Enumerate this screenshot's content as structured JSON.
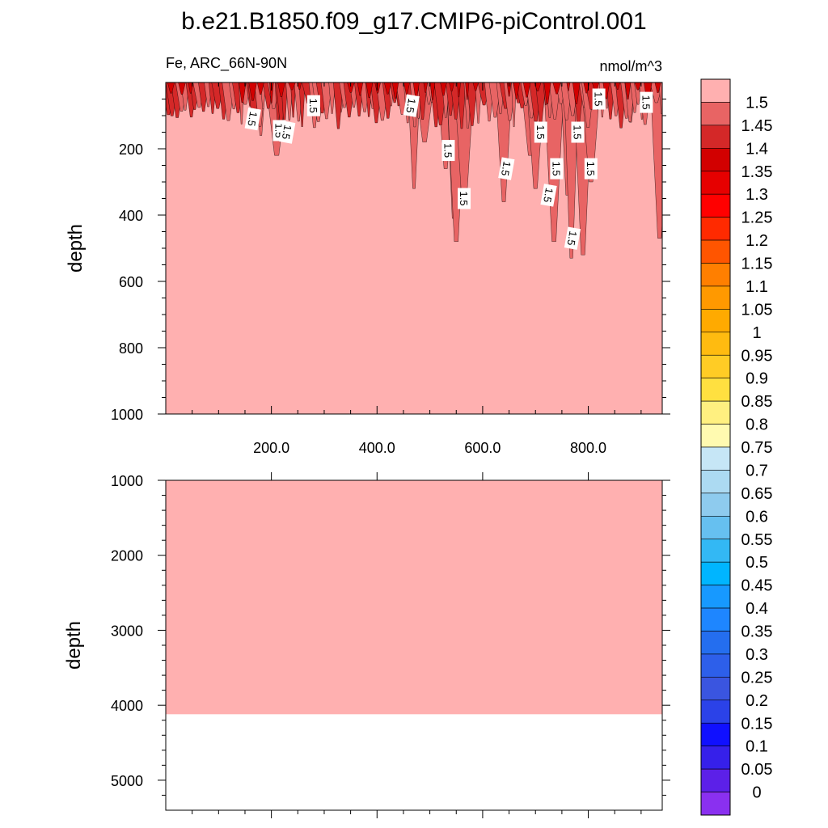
{
  "chart_data": {
    "type": "heatmap",
    "title": "b.e21.B1850.f09_g17.CMIP6-piControl.001",
    "variable": "Fe, ARC_66N-90N",
    "units": "nmol/m^3",
    "fill_color": "#ffb0b0",
    "colorbar": {
      "levels": [
        "1.5",
        "1.45",
        "1.4",
        "1.35",
        "1.3",
        "1.25",
        "1.2",
        "1.15",
        "1.1",
        "1.05",
        "1",
        "0.95",
        "0.9",
        "0.85",
        "0.8",
        "0.75",
        "0.7",
        "0.65",
        "0.6",
        "0.55",
        "0.5",
        "0.45",
        "0.4",
        "0.35",
        "0.3",
        "0.25",
        "0.2",
        "0.15",
        "0.1",
        "0.05",
        "0"
      ],
      "colors": [
        "#ffb0b0",
        "#e86464",
        "#d42828",
        "#d20000",
        "#e60000",
        "#ff0000",
        "#ff2a00",
        "#ff5500",
        "#ff7f00",
        "#ff9900",
        "#ffaa00",
        "#ffbb10",
        "#ffcc25",
        "#ffe040",
        "#fff080",
        "#fffab0",
        "#c6e6f6",
        "#acdaf2",
        "#8ecbee",
        "#66c0f0",
        "#33b8f4",
        "#00b5ff",
        "#1799ff",
        "#1e86ff",
        "#246eef",
        "#2d5fea",
        "#3a55e0",
        "#2b42e8",
        "#1010ff",
        "#3620ea",
        "#5c20e8",
        "#8a30f0"
      ]
    },
    "panels": [
      {
        "name": "upper",
        "ylabel": "depth",
        "xlim": [
          0,
          940
        ],
        "ylim": [
          0,
          1000
        ],
        "xticks": [
          "200.0",
          "400.0",
          "600.0",
          "800.0"
        ],
        "yticks": [
          "200",
          "400",
          "600",
          "800",
          "1000"
        ],
        "contour_labels": [
          "1.5",
          "1.5",
          "1.5",
          "1.5",
          "1.5",
          "1.5",
          "1.5",
          "1.5",
          "1.5",
          "1.5",
          "1.5",
          "1.5",
          "1.5",
          "1.5",
          "1.5",
          "1.5"
        ]
      },
      {
        "name": "lower",
        "ylabel": "depth",
        "xlim": [
          0,
          940
        ],
        "ylim": [
          1000,
          5400
        ],
        "yticks": [
          "1000",
          "2000",
          "3000",
          "4000",
          "5000"
        ],
        "data_floor_depth": 4120
      }
    ]
  }
}
